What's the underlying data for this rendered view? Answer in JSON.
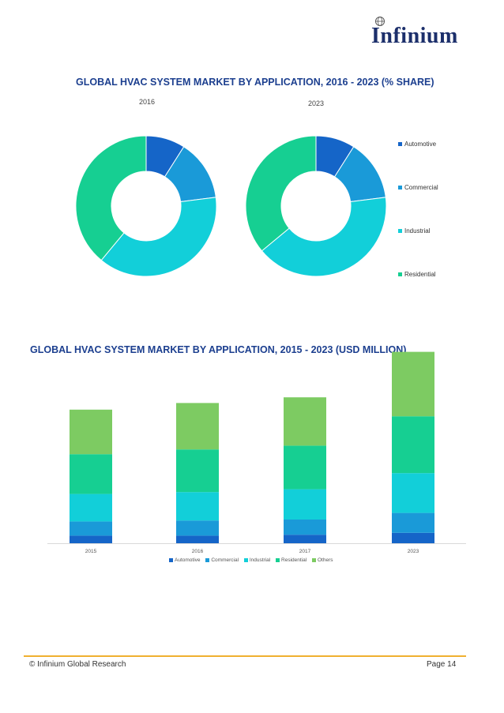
{
  "brand": {
    "name": "Infinium"
  },
  "colors": {
    "Automotive": "#1565c8",
    "Commercial": "#1a9ad8",
    "Industrial": "#12cfd9",
    "Residential": "#16cf92",
    "Others": "#7dcb62"
  },
  "chart_data": [
    {
      "type": "pie",
      "title": "GLOBAL HVAC SYSTEM MARKET BY APPLICATION, 2016 - 2023 (% SHARE)",
      "donut": true,
      "legend_position": "right",
      "categories": [
        "Automotive",
        "Commercial",
        "Industrial",
        "Residential"
      ],
      "series": [
        {
          "name": "2016",
          "values": [
            9,
            14,
            38,
            39
          ]
        },
        {
          "name": "2023",
          "values": [
            9,
            14,
            41,
            36
          ]
        }
      ]
    },
    {
      "type": "bar",
      "stacked": true,
      "title": "GLOBAL HVAC SYSTEM MARKET BY APPLICATION, 2015 - 2023 (USD MILLION)",
      "categories": [
        "2015",
        "2016",
        "2017",
        "2023"
      ],
      "legend_position": "bottom",
      "grid": false,
      "series": [
        {
          "name": "Automotive",
          "values": [
            8,
            8,
            9,
            11
          ]
        },
        {
          "name": "Commercial",
          "values": [
            15,
            16,
            16,
            21
          ]
        },
        {
          "name": "Industrial",
          "values": [
            29,
            30,
            32,
            42
          ]
        },
        {
          "name": "Residential",
          "values": [
            42,
            45,
            46,
            60
          ]
        },
        {
          "name": "Others",
          "values": [
            47,
            49,
            51,
            68
          ]
        }
      ]
    }
  ],
  "footer": {
    "copyright": "© Infinium Global Research",
    "page": "Page 14"
  }
}
